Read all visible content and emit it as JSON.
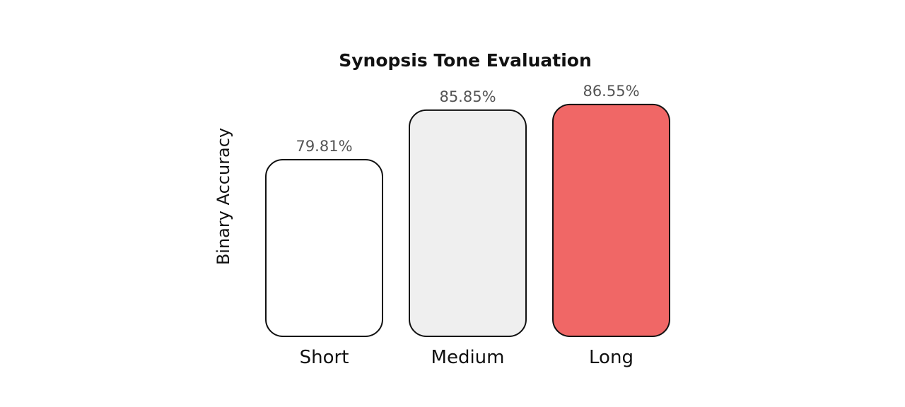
{
  "chart_data": {
    "type": "bar",
    "title": "Synopsis Tone Evaluation",
    "xlabel": "",
    "ylabel": "Binary Accuracy",
    "categories": [
      "Short",
      "Medium",
      "Long"
    ],
    "values": [
      79.81,
      85.85,
      86.55
    ],
    "value_labels": [
      "79.81%",
      "85.85%",
      "86.55%"
    ],
    "bar_colors": [
      "#ffffff",
      "#efefef",
      "#f06766"
    ],
    "grid": false,
    "legend": "none"
  }
}
